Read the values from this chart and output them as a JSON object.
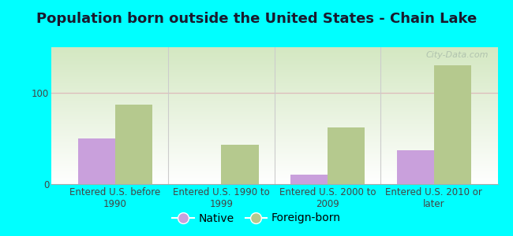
{
  "title": "Population born outside the United States - Chain Lake",
  "categories": [
    "Entered U.S. before\n1990",
    "Entered U.S. 1990 to\n1999",
    "Entered U.S. 2000 to\n2009",
    "Entered U.S. 2010 or\nlater"
  ],
  "native_values": [
    50,
    0,
    10,
    37
  ],
  "foreign_values": [
    87,
    43,
    62,
    130
  ],
  "native_color": "#c9a0dc",
  "foreign_color": "#b5c98e",
  "background_outer": "#00ffff",
  "ylabel": "",
  "yticks": [
    0,
    100
  ],
  "ymax": 150,
  "bar_width": 0.35,
  "legend_native": "Native",
  "legend_foreign": "Foreign-born",
  "watermark": "City-Data.com",
  "title_fontsize": 13,
  "tick_fontsize": 8.5,
  "legend_fontsize": 10,
  "divider_color": "#cccccc",
  "gridline_color": "#ddbbbb",
  "spine_color": "#aaaaaa"
}
